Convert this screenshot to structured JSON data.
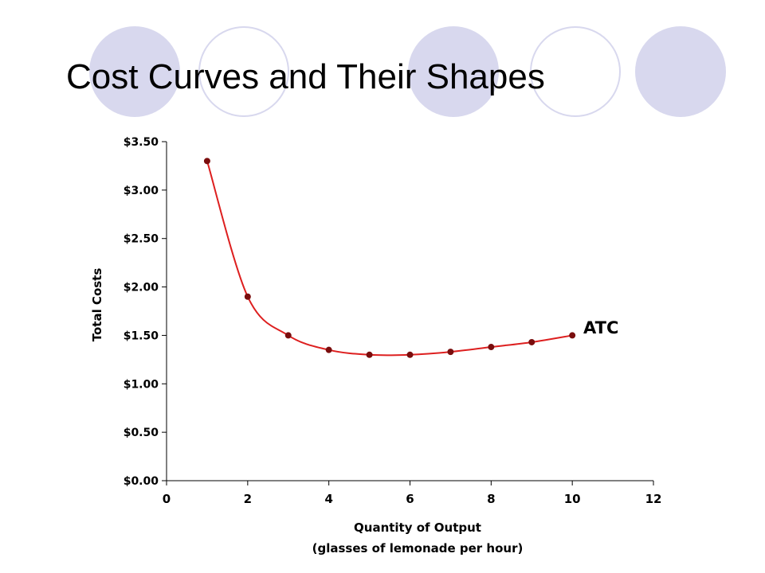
{
  "slide": {
    "title": "Cost Curves and Their Shapes",
    "decor_fill_color": "#d8d8ee"
  },
  "chart_data": {
    "type": "line",
    "title": "",
    "xlabel_line1": "Quantity of Output",
    "xlabel_line2": "(glasses of lemonade per hour)",
    "ylabel": "Total Costs",
    "xlim": [
      0,
      12
    ],
    "ylim": [
      0,
      3.5
    ],
    "x_ticks": [
      "0",
      "2",
      "4",
      "6",
      "8",
      "10",
      "12"
    ],
    "y_ticks": [
      "$0.00",
      "$0.50",
      "$1.00",
      "$1.50",
      "$2.00",
      "$2.50",
      "$3.00",
      "$3.50"
    ],
    "grid": false,
    "legend": "none",
    "series": [
      {
        "name": "ATC",
        "color": "#dd1f1f",
        "marker_color": "#7a0d0d",
        "x": [
          1,
          2,
          3,
          4,
          5,
          6,
          7,
          8,
          9,
          10
        ],
        "y": [
          3.3,
          1.9,
          1.5,
          1.35,
          1.3,
          1.3,
          1.33,
          1.38,
          1.43,
          1.5
        ]
      }
    ]
  }
}
